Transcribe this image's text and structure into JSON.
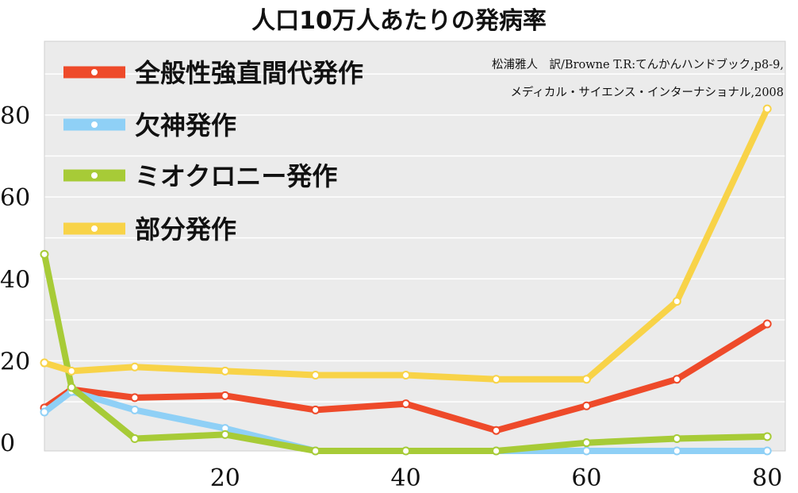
{
  "chart_data": {
    "type": "line",
    "title": "人口10万人あたりの発病率",
    "xlabel": "",
    "ylabel": "",
    "xlim": [
      0,
      82
    ],
    "ylim": [
      -2,
      98
    ],
    "x_ticks": [
      20,
      40,
      60,
      80
    ],
    "y_ticks": [
      0,
      20,
      40,
      60,
      80
    ],
    "grid": "horizontal",
    "legend_placement": "top-left",
    "source": [
      "松浦雅人　訳/Browne T.R:てんかんハンドブック,p8-9,",
      "メディカル・サイエンス・インターナショナル,2008"
    ],
    "series": [
      {
        "name": "全般性強直間代発作",
        "color": "#ee4a2a",
        "x": [
          0,
          3,
          10,
          20,
          30,
          40,
          50,
          60,
          70,
          80
        ],
        "y": [
          8.5,
          13,
          11,
          11.5,
          8,
          9.5,
          3,
          9,
          15.5,
          29
        ]
      },
      {
        "name": "欠神発作",
        "color": "#8fd0f6",
        "x": [
          0,
          3,
          10,
          20,
          30,
          40,
          50,
          60,
          70,
          80
        ],
        "y": [
          7.5,
          12.5,
          8,
          3.5,
          -2,
          -2,
          -2,
          -2,
          -2,
          -2
        ]
      },
      {
        "name": "ミオクロニー発作",
        "color": "#a7cb37",
        "x": [
          0,
          3,
          10,
          20,
          30,
          40,
          50,
          60,
          70,
          80
        ],
        "y": [
          46,
          13.5,
          1,
          2,
          -2,
          -2,
          -2,
          0,
          1,
          1.5
        ]
      },
      {
        "name": "部分発作",
        "color": "#f8d348",
        "x": [
          0,
          3,
          10,
          20,
          30,
          40,
          50,
          60,
          70,
          80
        ],
        "y": [
          19.5,
          17.5,
          18.5,
          17.5,
          16.5,
          16.5,
          15.5,
          15.5,
          34.5,
          81.5
        ]
      }
    ]
  }
}
